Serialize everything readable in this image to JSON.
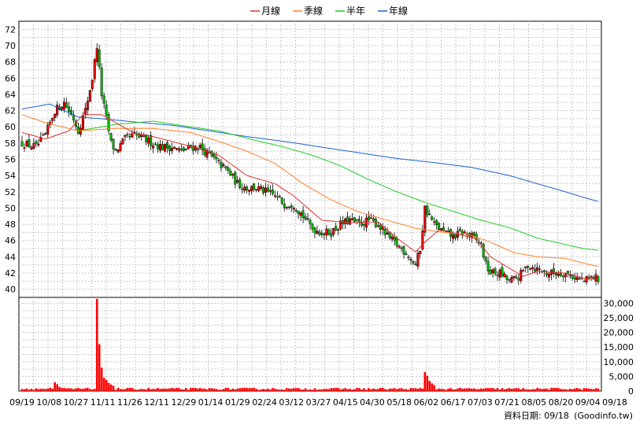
{
  "chart_data": {
    "type": "candlestick+volume",
    "legend": [
      {
        "name": "月線",
        "color": "#e03030"
      },
      {
        "name": "季線",
        "color": "#ff7f27"
      },
      {
        "name": "半年",
        "color": "#22cc22"
      },
      {
        "name": "年線",
        "color": "#1a5fd0"
      }
    ],
    "price_axis": {
      "ticks": [
        40,
        42,
        44,
        46,
        48,
        50,
        52,
        54,
        56,
        58,
        60,
        62,
        64,
        66,
        68,
        70,
        72
      ],
      "ylim": [
        39,
        73
      ]
    },
    "volume_axis": {
      "ticks": [
        "0",
        "5,000",
        "10,000",
        "15,000",
        "20,000",
        "25,000",
        "30,000"
      ],
      "ylim": [
        0,
        32000
      ]
    },
    "x_labels": [
      "09/19",
      "10/08",
      "10/27",
      "11/11",
      "11/26",
      "12/11",
      "12/29",
      "01/14",
      "01/29",
      "02/24",
      "03/12",
      "03/27",
      "04/15",
      "04/30",
      "05/18",
      "06/02",
      "06/17",
      "07/03",
      "07/21",
      "08/05",
      "08/20",
      "09/04",
      "09/18"
    ],
    "close_anchors": [
      [
        0,
        58
      ],
      [
        6,
        57.5
      ],
      [
        10,
        59
      ],
      [
        14,
        62
      ],
      [
        18,
        63
      ],
      [
        22,
        61
      ],
      [
        24,
        59.5
      ],
      [
        27,
        62
      ],
      [
        30,
        66
      ],
      [
        32,
        70
      ],
      [
        34,
        64
      ],
      [
        36,
        61
      ],
      [
        38,
        58
      ],
      [
        40,
        57
      ],
      [
        44,
        58.5
      ],
      [
        48,
        59
      ],
      [
        52,
        58.5
      ],
      [
        56,
        58
      ],
      [
        60,
        57.5
      ],
      [
        64,
        57.5
      ],
      [
        68,
        57
      ],
      [
        72,
        57.5
      ],
      [
        76,
        57.5
      ],
      [
        80,
        56.5
      ],
      [
        84,
        55.5
      ],
      [
        88,
        54.5
      ],
      [
        92,
        53
      ],
      [
        96,
        52.5
      ],
      [
        100,
        52.5
      ],
      [
        104,
        52
      ],
      [
        108,
        51.5
      ],
      [
        112,
        50.5
      ],
      [
        116,
        50.5
      ],
      [
        120,
        49
      ],
      [
        124,
        47.5
      ],
      [
        128,
        47
      ],
      [
        132,
        47
      ],
      [
        136,
        48
      ],
      [
        140,
        48.5
      ],
      [
        144,
        48
      ],
      [
        148,
        48.5
      ],
      [
        152,
        48
      ],
      [
        156,
        46.5
      ],
      [
        160,
        45.5
      ],
      [
        164,
        44.5
      ],
      [
        168,
        43
      ],
      [
        170,
        45
      ],
      [
        172,
        50
      ],
      [
        174,
        49
      ],
      [
        176,
        48
      ],
      [
        180,
        47
      ],
      [
        184,
        46.5
      ],
      [
        188,
        47
      ],
      [
        192,
        46.5
      ],
      [
        196,
        45.5
      ],
      [
        198,
        43
      ],
      [
        200,
        42
      ],
      [
        204,
        42
      ],
      [
        208,
        41
      ],
      [
        212,
        41.5
      ],
      [
        216,
        43
      ],
      [
        220,
        42.5
      ],
      [
        224,
        42
      ],
      [
        228,
        42
      ],
      [
        232,
        42
      ],
      [
        236,
        41.5
      ],
      [
        240,
        41
      ],
      [
        244,
        41.5
      ],
      [
        246,
        41.3
      ]
    ],
    "ma_month_anchors": [
      [
        0,
        59.3
      ],
      [
        10,
        58.5
      ],
      [
        20,
        59.5
      ],
      [
        26,
        61.5
      ],
      [
        34,
        61.5
      ],
      [
        40,
        60.5
      ],
      [
        48,
        59.2
      ],
      [
        56,
        58.8
      ],
      [
        64,
        58.2
      ],
      [
        72,
        57.6
      ],
      [
        84,
        56.5
      ],
      [
        96,
        54
      ],
      [
        108,
        53
      ],
      [
        116,
        51.5
      ],
      [
        128,
        48.5
      ],
      [
        140,
        48.2
      ],
      [
        152,
        48.3
      ],
      [
        160,
        46.3
      ],
      [
        168,
        44.6
      ],
      [
        172,
        45.8
      ],
      [
        178,
        47.3
      ],
      [
        186,
        46.8
      ],
      [
        194,
        46.2
      ],
      [
        200,
        44
      ],
      [
        208,
        42.6
      ],
      [
        214,
        41.6
      ],
      [
        220,
        42.2
      ],
      [
        232,
        42
      ],
      [
        240,
        41.3
      ],
      [
        246,
        41.3
      ]
    ],
    "ma_quarter_anchors": [
      [
        0,
        61.5
      ],
      [
        10,
        60.5
      ],
      [
        24,
        59.5
      ],
      [
        40,
        59.8
      ],
      [
        56,
        59.8
      ],
      [
        72,
        59.3
      ],
      [
        84,
        58.2
      ],
      [
        96,
        57
      ],
      [
        108,
        55.5
      ],
      [
        120,
        53
      ],
      [
        132,
        51
      ],
      [
        144,
        49.5
      ],
      [
        156,
        48.5
      ],
      [
        168,
        47.5
      ],
      [
        180,
        47
      ],
      [
        190,
        46.8
      ],
      [
        200,
        45.8
      ],
      [
        210,
        44.5
      ],
      [
        220,
        44
      ],
      [
        232,
        43.8
      ],
      [
        240,
        43.2
      ],
      [
        246,
        42.8
      ]
    ],
    "ma_half_anchors": [
      [
        24,
        59.5
      ],
      [
        40,
        60.3
      ],
      [
        56,
        60.7
      ],
      [
        72,
        60
      ],
      [
        84,
        59.5
      ],
      [
        100,
        58.3
      ],
      [
        112,
        57.5
      ],
      [
        124,
        56.5
      ],
      [
        136,
        55.2
      ],
      [
        148,
        53.5
      ],
      [
        160,
        52
      ],
      [
        172,
        50.7
      ],
      [
        184,
        49.6
      ],
      [
        196,
        48.5
      ],
      [
        208,
        47.6
      ],
      [
        220,
        46.3
      ],
      [
        232,
        45.5
      ],
      [
        240,
        45
      ],
      [
        246,
        44.8
      ]
    ],
    "ma_year_anchors": [
      [
        0,
        62.2
      ],
      [
        12,
        62.8
      ],
      [
        24,
        61.2
      ],
      [
        34,
        61
      ],
      [
        48,
        60.6
      ],
      [
        64,
        60.2
      ],
      [
        80,
        59.5
      ],
      [
        96,
        58.8
      ],
      [
        112,
        58.2
      ],
      [
        128,
        57.5
      ],
      [
        144,
        56.8
      ],
      [
        160,
        56.1
      ],
      [
        176,
        55.6
      ],
      [
        192,
        55
      ],
      [
        208,
        54
      ],
      [
        220,
        53
      ],
      [
        232,
        52
      ],
      [
        240,
        51.3
      ],
      [
        246,
        50.8
      ]
    ],
    "volume_spikes": [
      [
        14,
        3000
      ],
      [
        15,
        2300
      ],
      [
        16,
        1400
      ],
      [
        32,
        31500
      ],
      [
        33,
        16000
      ],
      [
        34,
        8000
      ],
      [
        35,
        4500
      ],
      [
        36,
        3800
      ],
      [
        37,
        2800
      ],
      [
        38,
        2200
      ],
      [
        39,
        1800
      ],
      [
        172,
        6500
      ],
      [
        173,
        5200
      ],
      [
        174,
        3500
      ],
      [
        175,
        2600
      ],
      [
        176,
        2000
      ]
    ],
    "volume_base": 800,
    "n_bars": 247
  },
  "footer": {
    "date_label": "資料日期: 09/18",
    "source": "(Goodinfo.tw)"
  }
}
